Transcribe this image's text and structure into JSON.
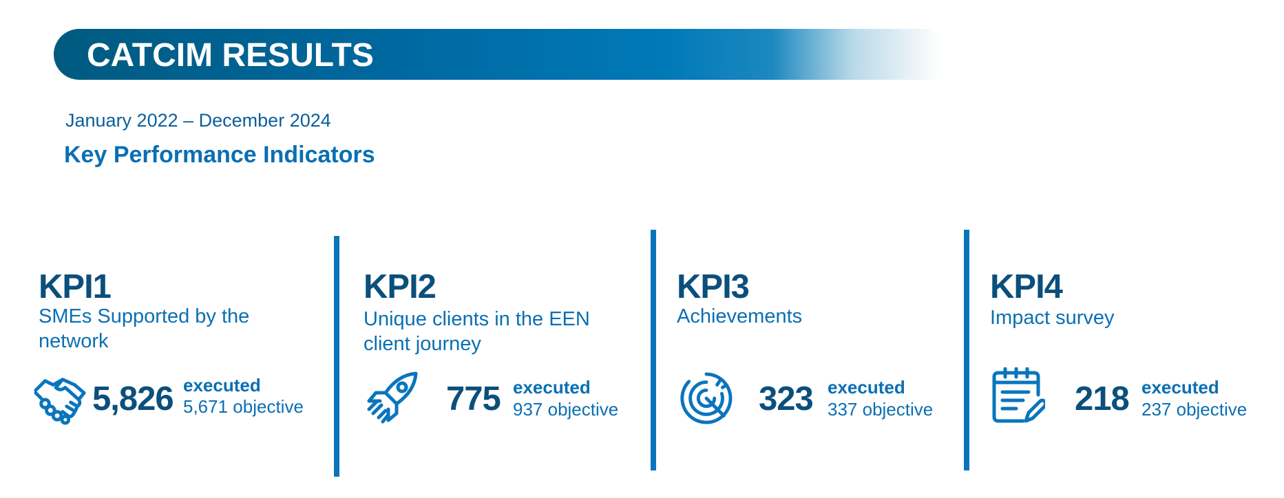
{
  "header": {
    "title": "CATCIM RESULTS"
  },
  "period": "January 2022 – December 2024",
  "section_title": "Key Performance Indicators",
  "kpis": [
    {
      "code": "KPI1",
      "description": "SMEs Supported by the network",
      "value": "5,826",
      "executed_label": "executed",
      "objective": "5,671 objective",
      "icon": "handshake-icon"
    },
    {
      "code": "KPI2",
      "description": "Unique clients in the EEN client journey",
      "value": "775",
      "executed_label": "executed",
      "objective": "937 objective",
      "icon": "rocket-icon"
    },
    {
      "code": "KPI3",
      "description": "Achievements",
      "value": "323",
      "executed_label": "executed",
      "objective": "337 objective",
      "icon": "target-icon"
    },
    {
      "code": "KPI4",
      "description": "Impact survey",
      "value": "218",
      "executed_label": "executed",
      "objective": "237 objective",
      "icon": "survey-icon"
    }
  ],
  "colors": {
    "accent": "#0a75bd",
    "dark": "#0b4f7c",
    "banner": "#005a80"
  }
}
